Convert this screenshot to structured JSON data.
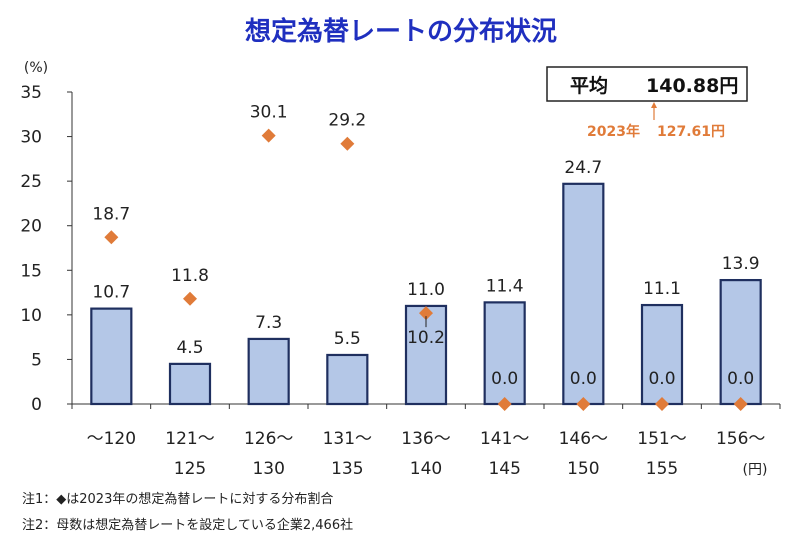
{
  "chart_data": {
    "type": "bar",
    "title": "想定為替レートの分布状況",
    "ylabel": "(%)",
    "xunit": "(円)",
    "ylim": [
      0,
      35
    ],
    "yticks": [
      0,
      5,
      10,
      15,
      20,
      25,
      30,
      35
    ],
    "categories": [
      [
        "～120",
        ""
      ],
      [
        "121～",
        "125"
      ],
      [
        "126～",
        "130"
      ],
      [
        "131～",
        "135"
      ],
      [
        "136～",
        "140"
      ],
      [
        "141～",
        "145"
      ],
      [
        "146～",
        "150"
      ],
      [
        "151～",
        "155"
      ],
      [
        "156～",
        ""
      ]
    ],
    "series": [
      {
        "type": "bar",
        "values": [
          10.7,
          4.5,
          7.3,
          5.5,
          11.0,
          11.4,
          24.7,
          11.1,
          13.9
        ],
        "color": "#b4c7e7",
        "border": "#1f2f5f"
      },
      {
        "type": "diamond",
        "values": [
          18.7,
          11.8,
          30.1,
          29.2,
          10.2,
          0.0,
          0.0,
          0.0,
          0.0
        ],
        "color": "#e07b39"
      }
    ],
    "bar_labels": [
      "10.7",
      "4.5",
      "7.3",
      "5.5",
      "11.0",
      "11.4",
      "24.7",
      "11.1",
      "13.9"
    ],
    "diamond_labels": [
      "18.7",
      "11.8",
      "30.1",
      "29.2",
      "10.2",
      "0.0",
      "0.0",
      "0.0",
      "0.0"
    ],
    "average_box": {
      "label": "平均",
      "value": "140.88円"
    },
    "prev_year": {
      "label": "2023年",
      "value": "127.61円",
      "color": "#e07b39"
    },
    "title_color": "#1f2fbf"
  },
  "notes": [
    "注1：◆は2023年の想定為替レートに対する分布割合",
    "注2：母数は想定為替レートを設定している企業2,466社"
  ]
}
